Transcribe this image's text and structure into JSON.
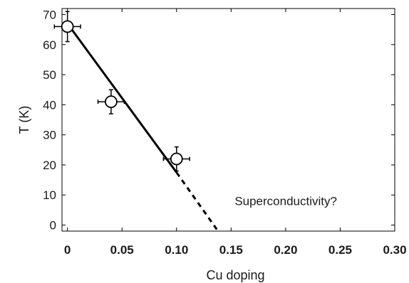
{
  "chart_data": {
    "type": "scatter",
    "xlabel": "Cu doping",
    "ylabel": "T (K)",
    "xlim": [
      -0.005,
      0.3
    ],
    "ylim": [
      -2,
      72
    ],
    "x_ticks": [
      {
        "value": 0,
        "label": "0"
      },
      {
        "value": 0.05,
        "label": "0.05"
      },
      {
        "value": 0.1,
        "label": "0.10"
      },
      {
        "value": 0.15,
        "label": "0.15"
      },
      {
        "value": 0.2,
        "label": "0.20"
      },
      {
        "value": 0.25,
        "label": "0.25"
      },
      {
        "value": 0.3,
        "label": "0.30"
      }
    ],
    "y_ticks": [
      {
        "value": 0,
        "label": "0"
      },
      {
        "value": 10,
        "label": "10"
      },
      {
        "value": 20,
        "label": "20"
      },
      {
        "value": 30,
        "label": "30"
      },
      {
        "value": 40,
        "label": "40"
      },
      {
        "value": 50,
        "label": "50"
      },
      {
        "value": 60,
        "label": "60"
      },
      {
        "value": 70,
        "label": "70"
      }
    ],
    "grid": false,
    "points": [
      {
        "x": 0.0,
        "y": 66,
        "xerr": 0.012,
        "yerr": 5
      },
      {
        "x": 0.04,
        "y": 41,
        "xerr": 0.012,
        "yerr": 4
      },
      {
        "x": 0.1,
        "y": 22,
        "xerr": 0.012,
        "yerr": 4
      }
    ],
    "fit_line": {
      "x": [
        0.0,
        0.1
      ],
      "y": [
        67,
        17.5
      ],
      "style": "solid"
    },
    "extrapolation": {
      "x": [
        0.1,
        0.138
      ],
      "y": [
        17.5,
        -2
      ],
      "style": "dashed"
    },
    "annotations": [
      {
        "text": "Superconductivity?",
        "x": 0.15,
        "y": 8
      }
    ]
  }
}
